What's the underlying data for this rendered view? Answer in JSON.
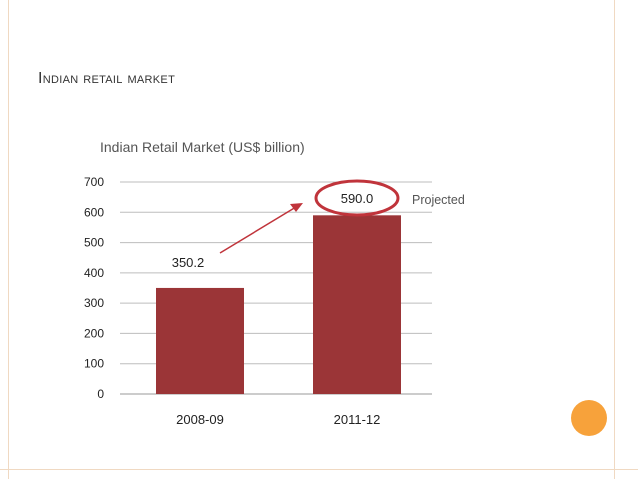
{
  "slide": {
    "title": "Indian retail market",
    "accent_dot_color": "#f7a23b",
    "frame_color": "#f0d9c2"
  },
  "chart_data": {
    "type": "bar",
    "title": "Indian Retail Market (US$ billion)",
    "categories": [
      "2008-09",
      "2011-12"
    ],
    "values": [
      350.2,
      590.0
    ],
    "value_labels": [
      "350.2",
      "590.0"
    ],
    "ylim": [
      0,
      700
    ],
    "yticks": [
      "0",
      "100",
      "200",
      "300",
      "400",
      "500",
      "600",
      "700"
    ],
    "grid": true,
    "bar_color": "#9b3537",
    "annotation": "Projected",
    "highlight_circle_color": "#c0343b"
  }
}
